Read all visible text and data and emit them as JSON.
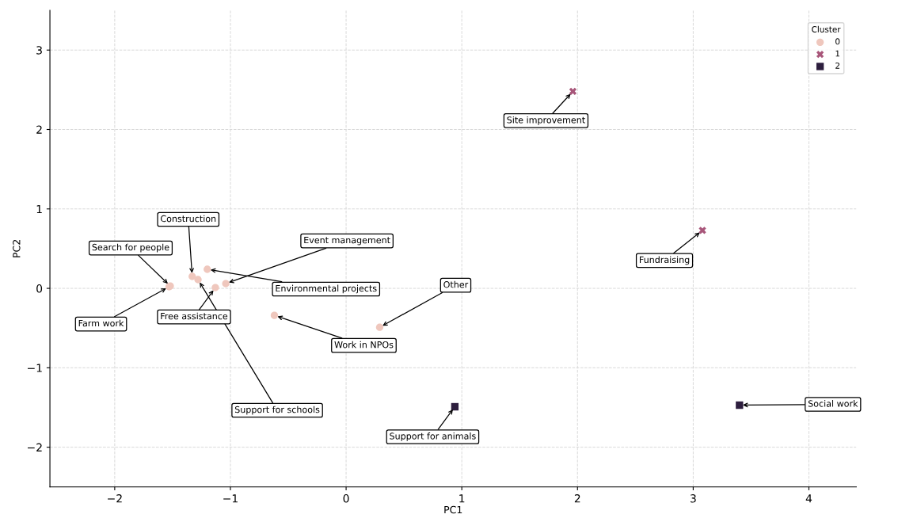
{
  "chart_data": {
    "type": "scatter",
    "xlabel": "PC1",
    "ylabel": "PC2",
    "legend_title": "Cluster",
    "legend": "top right",
    "grid": true,
    "xlim": [
      -2.56,
      4.41
    ],
    "ylim": [
      -2.5,
      3.5
    ],
    "xticks": [
      -2,
      -1,
      0,
      1,
      2,
      3,
      4
    ],
    "yticks": [
      -2,
      -1,
      0,
      1,
      2,
      3
    ],
    "series": [
      {
        "name": "0",
        "color": "#efc7bd",
        "marker": "circle",
        "x": [
          -1.52,
          -1.53,
          -1.33,
          -1.28,
          -1.2,
          -1.04,
          -1.13,
          -0.62,
          0.29
        ],
        "values": [
          0.03,
          0.02,
          0.15,
          0.11,
          0.24,
          0.06,
          0.01,
          -0.34,
          -0.49
        ]
      },
      {
        "name": "1",
        "color": "#a8567a",
        "marker": "cross",
        "x": [
          1.96,
          3.08
        ],
        "values": [
          2.48,
          0.73
        ]
      },
      {
        "name": "2",
        "color": "#2d1e3e",
        "marker": "square",
        "x": [
          3.4,
          0.94
        ],
        "values": [
          -1.47,
          -1.49
        ]
      }
    ],
    "annotations": [
      {
        "text": "Search for people",
        "x": -1.52,
        "y": 0.03
      },
      {
        "text": "Farm work",
        "x": -1.53,
        "y": 0.02
      },
      {
        "text": "Construction",
        "x": -1.33,
        "y": 0.15
      },
      {
        "text": "Support for schools",
        "x": -1.28,
        "y": 0.11
      },
      {
        "text": "Environmental projects",
        "x": -1.2,
        "y": 0.24
      },
      {
        "text": "Event management",
        "x": -1.04,
        "y": 0.06
      },
      {
        "text": "Free assistance",
        "x": -1.13,
        "y": 0.01
      },
      {
        "text": "Work in NPOs",
        "x": -0.62,
        "y": -0.34
      },
      {
        "text": "Other",
        "x": 0.29,
        "y": -0.49
      },
      {
        "text": "Site improvement",
        "x": 1.96,
        "y": 2.48
      },
      {
        "text": "Fundraising",
        "x": 3.08,
        "y": 0.73
      },
      {
        "text": "Social work",
        "x": 3.4,
        "y": -1.47
      },
      {
        "text": "Support for animals",
        "x": 0.94,
        "y": -1.49
      }
    ]
  }
}
